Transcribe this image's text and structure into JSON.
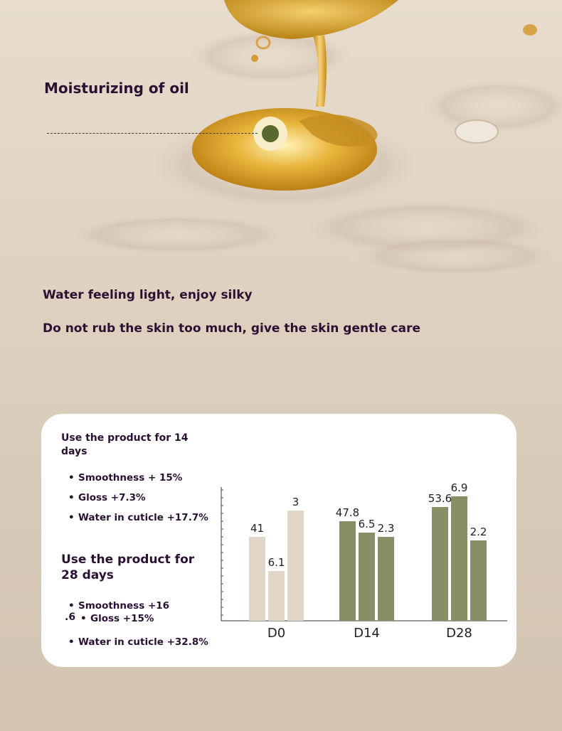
{
  "headline": "Moisturizing of oil",
  "tagline1": "Water feeling light, enjoy silky",
  "tagline2": "Do not rub the skin too much, give the skin gentle care",
  "colors": {
    "beige_bar": "#e0d5c7",
    "green_bar": "#868f65",
    "marker_dot": "#57692f",
    "text": "#2a1133"
  },
  "card": {
    "block14": {
      "title": "Use the product for 14 days",
      "items": [
        "Smoothness + 15%",
        "Gloss +7.3%",
        "Water in cuticle +17.7%"
      ]
    },
    "block28": {
      "title": "Use the product for 28 days",
      "items": [
        "Smoothness +16",
        "Gloss +15%",
        "Water in cuticle +32.8%"
      ],
      "fragment": ".6"
    },
    "bullet": "•"
  },
  "chart_data": {
    "type": "bar",
    "categories": [
      "D0",
      "D14",
      "D28"
    ],
    "series": [
      {
        "values": [
          41,
          47.8,
          53.6
        ]
      },
      {
        "values": [
          6.1,
          6.5,
          6.9
        ]
      },
      {
        "values": [
          3,
          2.3,
          2.2
        ]
      }
    ],
    "grid": false,
    "legend": "none"
  }
}
